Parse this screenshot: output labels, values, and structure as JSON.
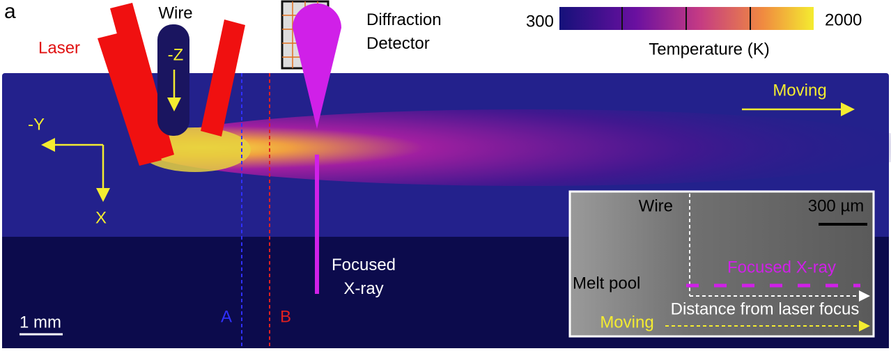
{
  "panel_label": "a",
  "labels": {
    "laser": "Laser",
    "wire": "Wire",
    "z_axis": "-Z",
    "y_axis": "-Y",
    "x_axis": "X",
    "detector": "Diffraction\nDetector",
    "moving": "Moving",
    "xray": "Focused\nX-ray",
    "scale_bar": "1 mm",
    "line_a": "A",
    "line_b": "B"
  },
  "colorbar": {
    "min": 300,
    "max": 2000,
    "label": "Temperature (K)"
  },
  "inset": {
    "wire": "Wire",
    "scale_bar": "300 µm",
    "xray": "Focused X-ray",
    "melt_pool": "Melt pool",
    "distance": "Distance from laser focus",
    "moving": "Moving"
  }
}
